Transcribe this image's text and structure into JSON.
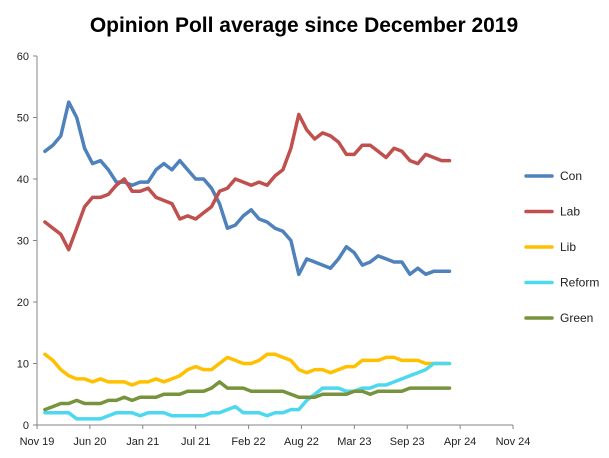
{
  "chart_data": {
    "type": "line",
    "title": "Opinion Poll average since December 2019",
    "xlabel": "",
    "ylabel": "",
    "ylim": [
      0,
      60
    ],
    "yticks": [
      0,
      10,
      20,
      30,
      40,
      50,
      60
    ],
    "xlim": [
      "2019-11-01",
      "2024-11-01"
    ],
    "xticks": [
      "Nov 19",
      "Jun 20",
      "Jan 21",
      "Jul 21",
      "Feb 22",
      "Aug 22",
      "Mar 23",
      "Sep 23",
      "Apr 24",
      "Nov 24"
    ],
    "grid": false,
    "legend_position": "right",
    "x": [
      "2019-12",
      "2020-01",
      "2020-02",
      "2020-03",
      "2020-04",
      "2020-05",
      "2020-06",
      "2020-07",
      "2020-08",
      "2020-09",
      "2020-10",
      "2020-11",
      "2020-12",
      "2021-01",
      "2021-02",
      "2021-03",
      "2021-04",
      "2021-05",
      "2021-06",
      "2021-07",
      "2021-08",
      "2021-09",
      "2021-10",
      "2021-11",
      "2021-12",
      "2022-01",
      "2022-02",
      "2022-03",
      "2022-04",
      "2022-05",
      "2022-06",
      "2022-07",
      "2022-08",
      "2022-09",
      "2022-10",
      "2022-11",
      "2022-12",
      "2023-01",
      "2023-02",
      "2023-03",
      "2023-04",
      "2023-05",
      "2023-06",
      "2023-07",
      "2023-08",
      "2023-09",
      "2023-10",
      "2023-11",
      "2023-12",
      "2024-01",
      "2024-02",
      "2024-03"
    ],
    "series": [
      {
        "name": "Con",
        "color": "#4F81BD",
        "values": [
          44.5,
          45.5,
          47,
          52.5,
          50,
          45,
          42.5,
          43,
          41.5,
          39.5,
          39.5,
          39,
          39.5,
          39.5,
          41.5,
          42.5,
          41.5,
          43,
          41.5,
          40,
          40,
          38.5,
          36,
          32,
          32.5,
          34,
          35,
          33.5,
          33,
          32,
          31.5,
          30,
          24.5,
          27,
          26.5,
          26,
          25.5,
          27,
          29,
          28,
          26,
          26.5,
          27.5,
          27,
          26.5,
          26.5,
          24.5,
          25.5,
          24.5,
          25,
          25,
          25
        ]
      },
      {
        "name": "Lab",
        "color": "#C0504D",
        "values": [
          33,
          32,
          31,
          28.5,
          32,
          35.5,
          37,
          37,
          37.5,
          39,
          40,
          38,
          38,
          38.5,
          37,
          36.5,
          36,
          33.5,
          34,
          33.5,
          34.5,
          35.5,
          38,
          38.5,
          40,
          39.5,
          39,
          39.5,
          39,
          40.5,
          41.5,
          45,
          50.5,
          48,
          46.5,
          47.5,
          47,
          46,
          44,
          44,
          45.5,
          45.5,
          44.5,
          43.5,
          45,
          44.5,
          43,
          42.5,
          44,
          43.5,
          43,
          43
        ]
      },
      {
        "name": "Lib",
        "color": "#FFC000",
        "values": [
          11.5,
          10.5,
          9,
          8,
          7.5,
          7.5,
          7,
          7.5,
          7,
          7,
          7,
          6.5,
          7,
          7,
          7.5,
          7,
          7.5,
          8,
          9,
          9.5,
          9,
          9,
          10,
          11,
          10.5,
          10,
          10,
          10.5,
          11.5,
          11.5,
          11,
          10.5,
          9,
          8.5,
          9,
          9,
          8.5,
          9,
          9.5,
          9.5,
          10.5,
          10.5,
          10.5,
          11,
          11,
          10.5,
          10.5,
          10.5,
          10,
          10,
          10,
          10
        ]
      },
      {
        "name": "Reform",
        "color": "#4DD8F0",
        "values": [
          2,
          2,
          2,
          2,
          1,
          1,
          1,
          1,
          1.5,
          2,
          2,
          2,
          1.5,
          2,
          2,
          2,
          1.5,
          1.5,
          1.5,
          1.5,
          1.5,
          2,
          2,
          2.5,
          3,
          2,
          2,
          2,
          1.5,
          2,
          2,
          2.5,
          2.5,
          4,
          5,
          6,
          6,
          6,
          5.5,
          5.5,
          6,
          6,
          6.5,
          6.5,
          7,
          7.5,
          8,
          8.5,
          9,
          10,
          10,
          10
        ]
      },
      {
        "name": "Green",
        "color": "#77933C",
        "values": [
          2.5,
          3,
          3.5,
          3.5,
          4,
          3.5,
          3.5,
          3.5,
          4,
          4,
          4.5,
          4,
          4.5,
          4.5,
          4.5,
          5,
          5,
          5,
          5.5,
          5.5,
          5.5,
          6,
          7,
          6,
          6,
          6,
          5.5,
          5.5,
          5.5,
          5.5,
          5.5,
          5,
          4.5,
          4.5,
          4.5,
          5,
          5,
          5,
          5,
          5.5,
          5.5,
          5,
          5.5,
          5.5,
          5.5,
          5.5,
          6,
          6,
          6,
          6,
          6,
          6
        ]
      }
    ]
  }
}
